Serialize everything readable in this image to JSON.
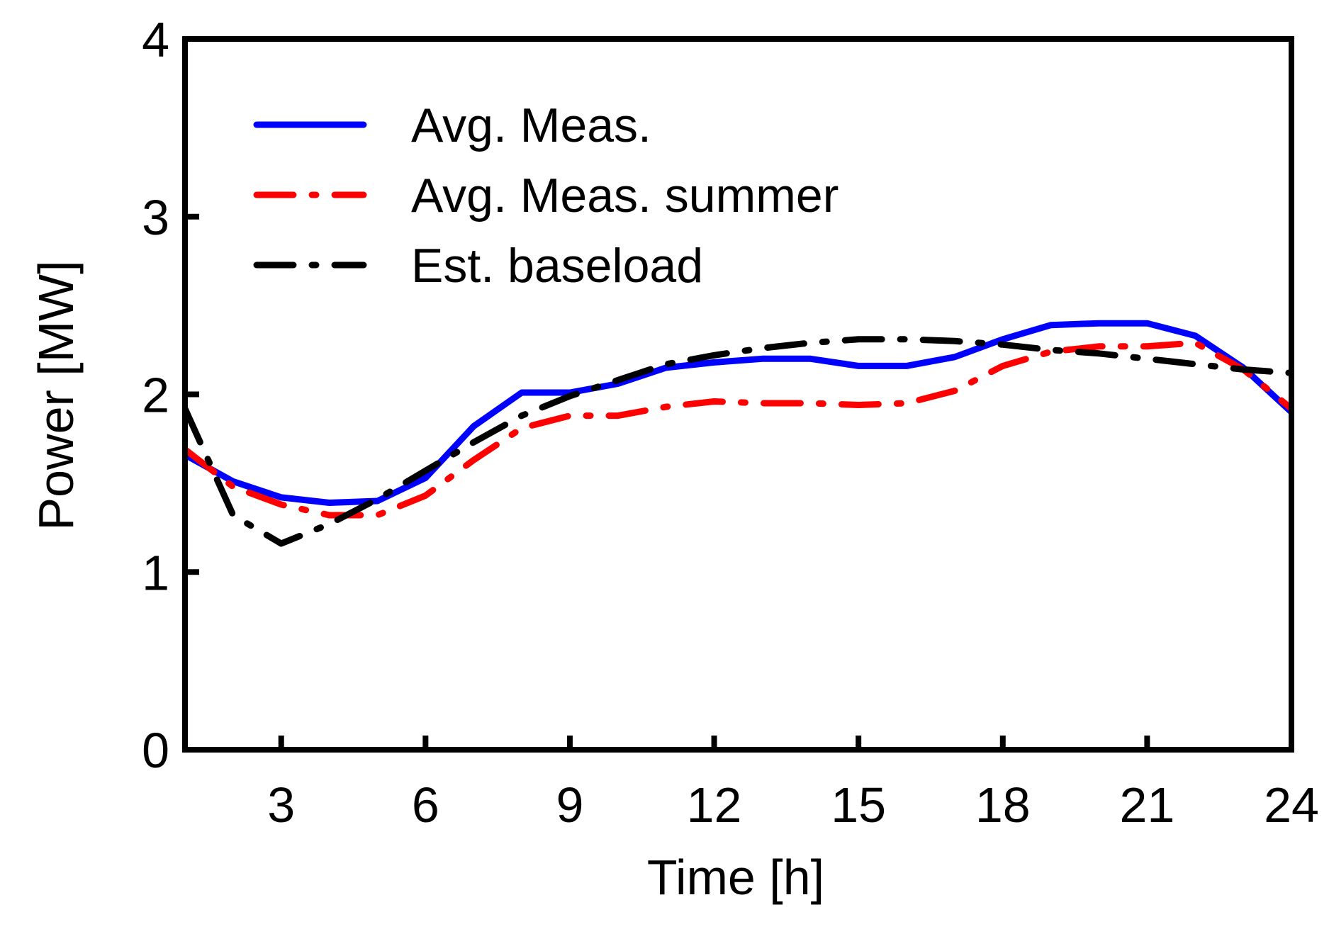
{
  "chart_data": {
    "type": "line",
    "title": "",
    "xlabel": "Time [h]",
    "ylabel": "Power [MW]",
    "xlim": [
      1,
      24
    ],
    "ylim": [
      0,
      4
    ],
    "xticks": [
      3,
      6,
      9,
      12,
      15,
      18,
      21,
      24
    ],
    "yticks": [
      0,
      1,
      2,
      3,
      4
    ],
    "grid": false,
    "legend_position": "top-left",
    "series": [
      {
        "name": "Avg. Meas.",
        "color": "#0000ff",
        "style": "solid",
        "x": [
          1,
          2,
          3,
          4,
          5,
          6,
          7,
          8,
          9,
          10,
          11,
          12,
          13,
          14,
          15,
          16,
          17,
          18,
          19,
          20,
          21,
          22,
          23,
          24
        ],
        "values": [
          1.66,
          1.51,
          1.42,
          1.39,
          1.4,
          1.53,
          1.82,
          2.01,
          2.01,
          2.06,
          2.15,
          2.18,
          2.2,
          2.2,
          2.16,
          2.16,
          2.21,
          2.31,
          2.39,
          2.4,
          2.4,
          2.33,
          2.15,
          1.9
        ]
      },
      {
        "name": "Avg. Meas. summer",
        "color": "#ff0000",
        "style": "dash-dot",
        "x": [
          1,
          2,
          3,
          4,
          5,
          6,
          7,
          8,
          9,
          10,
          11,
          12,
          13,
          14,
          15,
          16,
          17,
          18,
          19,
          20,
          21,
          22,
          23,
          24
        ],
        "values": [
          1.69,
          1.48,
          1.38,
          1.32,
          1.32,
          1.43,
          1.63,
          1.81,
          1.88,
          1.88,
          1.93,
          1.96,
          1.95,
          1.95,
          1.94,
          1.95,
          2.02,
          2.16,
          2.24,
          2.27,
          2.27,
          2.29,
          2.14,
          1.92
        ]
      },
      {
        "name": "Est. baseload",
        "color": "#000000",
        "style": "dash-dot",
        "x": [
          1,
          2,
          3,
          4,
          5,
          6,
          7,
          8,
          9,
          10,
          11,
          12,
          13,
          14,
          15,
          16,
          17,
          18,
          19,
          20,
          21,
          22,
          23,
          24
        ],
        "values": [
          1.92,
          1.32,
          1.16,
          1.27,
          1.41,
          1.57,
          1.73,
          1.88,
          1.99,
          2.08,
          2.17,
          2.22,
          2.26,
          2.29,
          2.31,
          2.31,
          2.3,
          2.28,
          2.25,
          2.23,
          2.2,
          2.17,
          2.14,
          2.12
        ]
      }
    ]
  }
}
